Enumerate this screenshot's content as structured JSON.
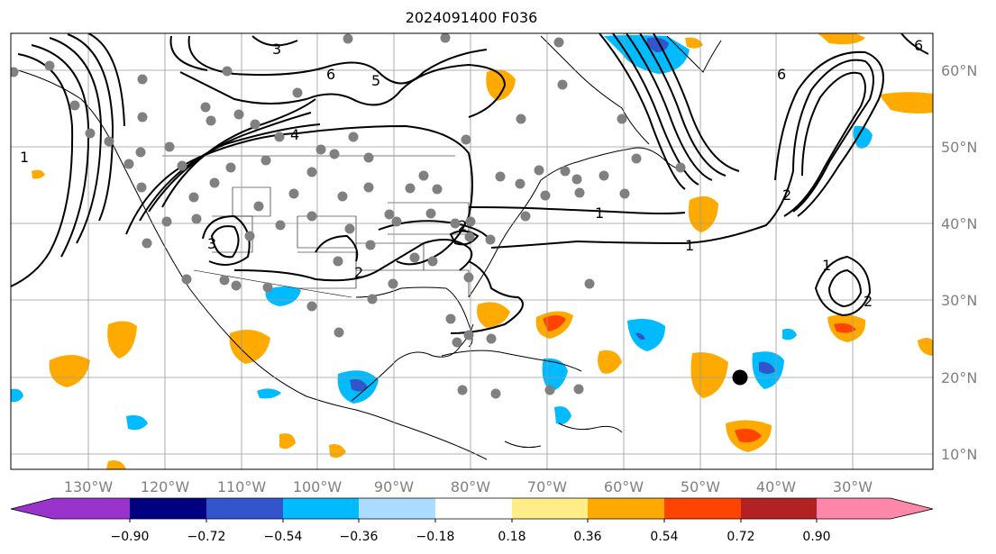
{
  "title": "2024091400 F036",
  "map": {
    "lon_range": [
      -140,
      -22
    ],
    "lat_range": [
      8,
      66
    ],
    "longitude_ticks": [
      "130°W",
      "120°W",
      "110°W",
      "100°W",
      "90°W",
      "80°W",
      "70°W",
      "60°W",
      "50°W",
      "40°W",
      "30°W"
    ],
    "latitude_ticks": [
      "10°N",
      "20°N",
      "30°N",
      "40°N",
      "50°N",
      "60°N"
    ],
    "grid": true
  },
  "contours": {
    "labels": [
      "1",
      "1",
      "1",
      "1",
      "2",
      "2",
      "2",
      "2",
      "3",
      "3",
      "4",
      "5",
      "6",
      "6",
      "6"
    ]
  },
  "colorbar": {
    "orientation": "horizontal",
    "extend": "both",
    "tick_labels": [
      "−0.90",
      "−0.72",
      "−0.54",
      "−0.36",
      "−0.18",
      "0.18",
      "0.36",
      "0.54",
      "0.72",
      "0.90"
    ],
    "colors": [
      "#9933cc",
      "#000080",
      "#3355cc",
      "#00bbff",
      "#aaddff",
      "#ffffff",
      "#ffee88",
      "#ffaa00",
      "#ff4400",
      "#b22222",
      "#ff88aa"
    ]
  },
  "markers": {
    "storm_center": {
      "lon": -46,
      "lat": 20
    }
  }
}
